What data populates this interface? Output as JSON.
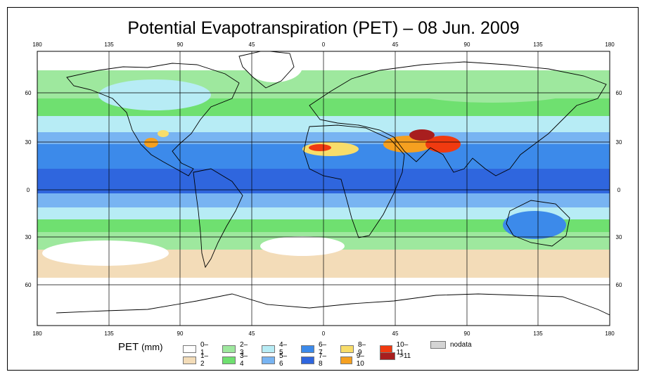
{
  "title": "Potential Evapotranspiration (PET) – 08 Jun. 2009",
  "legend": {
    "label": "PET",
    "unit": "(mm)",
    "classes": [
      {
        "label": "0–1",
        "color": "#ffffff"
      },
      {
        "label": "1–2",
        "color": "#f3dcb8"
      },
      {
        "label": "2–3",
        "color": "#9ee89e"
      },
      {
        "label": "3–4",
        "color": "#6fe070"
      },
      {
        "label": "4–5",
        "color": "#b7ecf5"
      },
      {
        "label": "5–6",
        "color": "#78b4f2"
      },
      {
        "label": "6–7",
        "color": "#3c8aea"
      },
      {
        "label": "7–8",
        "color": "#2f66de"
      },
      {
        "label": "8–9",
        "color": "#f8dd6a"
      },
      {
        "label": "9–10",
        "color": "#f5a020"
      },
      {
        "label": "10–11",
        "color": "#f03a10"
      },
      {
        "label": ">11",
        "color": "#a81e1e"
      },
      {
        "label": "nodata",
        "color": "#d4d4d4"
      }
    ]
  },
  "axes": {
    "lon_ticks": [
      "180",
      "135",
      "90",
      "45",
      "0",
      "45",
      "90",
      "135",
      "180"
    ],
    "lat_ticks": [
      "60",
      "30",
      "0",
      "30",
      "60"
    ]
  }
}
